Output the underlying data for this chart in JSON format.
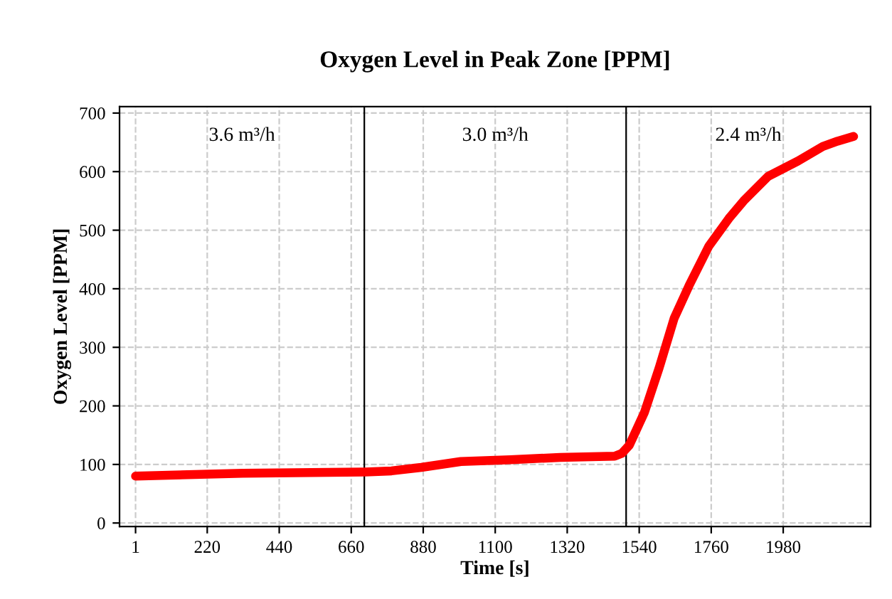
{
  "chart_data": {
    "type": "line",
    "title": "Oxygen Level in Peak Zone [PPM]",
    "xlabel": "Time [s]",
    "ylabel": "Oxygen Level [PPM]",
    "x": [
      1,
      328,
      702,
      783,
      874,
      995,
      1146,
      1298,
      1465,
      1487,
      1510,
      1556,
      1601,
      1647,
      1692,
      1753,
      1814,
      1859,
      1934,
      2025,
      2101,
      2146,
      2195
    ],
    "series": [
      {
        "color": "#ff0000",
        "values": [
          80,
          85,
          87,
          89,
          95,
          105,
          108,
          112,
          114,
          119,
          133,
          189,
          265,
          350,
          405,
          473,
          520,
          550,
          592,
          618,
          643,
          652,
          660
        ]
      }
    ],
    "xlim": [
      -48,
      2247
    ],
    "xticks": [
      1,
      220,
      440,
      660,
      880,
      1100,
      1320,
      1540,
      1760,
      1980
    ],
    "ylim": [
      -6,
      711
    ],
    "yticks": [
      0,
      100,
      200,
      300,
      400,
      500,
      600,
      700
    ],
    "grid": true,
    "line_style": "solid",
    "marker": "none",
    "ref_lines": [
      {
        "axis": "x",
        "value": 700,
        "color": "#000000"
      },
      {
        "axis": "x",
        "value": 1500,
        "color": "#000000"
      }
    ],
    "annotations": [
      "3.6 m³/h",
      "3.0 m³/h",
      "2.4 m³/h"
    ]
  }
}
